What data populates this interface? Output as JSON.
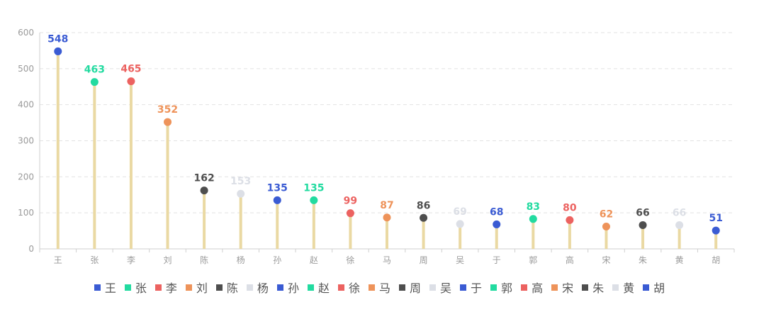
{
  "chart_data": {
    "type": "lollipop",
    "categories": [
      "王",
      "张",
      "李",
      "刘",
      "陈",
      "杨",
      "孙",
      "赵",
      "徐",
      "马",
      "周",
      "吴",
      "于",
      "郭",
      "高",
      "宋",
      "朱",
      "黄",
      "胡"
    ],
    "values": [
      548,
      463,
      465,
      352,
      162,
      153,
      135,
      135,
      99,
      87,
      86,
      69,
      68,
      83,
      80,
      62,
      66,
      66,
      51
    ],
    "colors": [
      "#3a5bd3",
      "#22dba0",
      "#ec6260",
      "#ee935a",
      "#4e4e4e",
      "#dcdfe6",
      "#3a5bd3",
      "#22dba0",
      "#ec6260",
      "#ee935a",
      "#4e4e4e",
      "#dcdfe6",
      "#3a5bd3",
      "#22dba0",
      "#ec6260",
      "#ee935a",
      "#4e4e4e",
      "#dcdfe6",
      "#3a5bd3"
    ],
    "stem_color": "#ead9a3",
    "ylim": [
      0,
      600
    ],
    "yticks": [
      0,
      100,
      200,
      300,
      400,
      500,
      600
    ],
    "grid": true,
    "legend_position": "bottom"
  }
}
